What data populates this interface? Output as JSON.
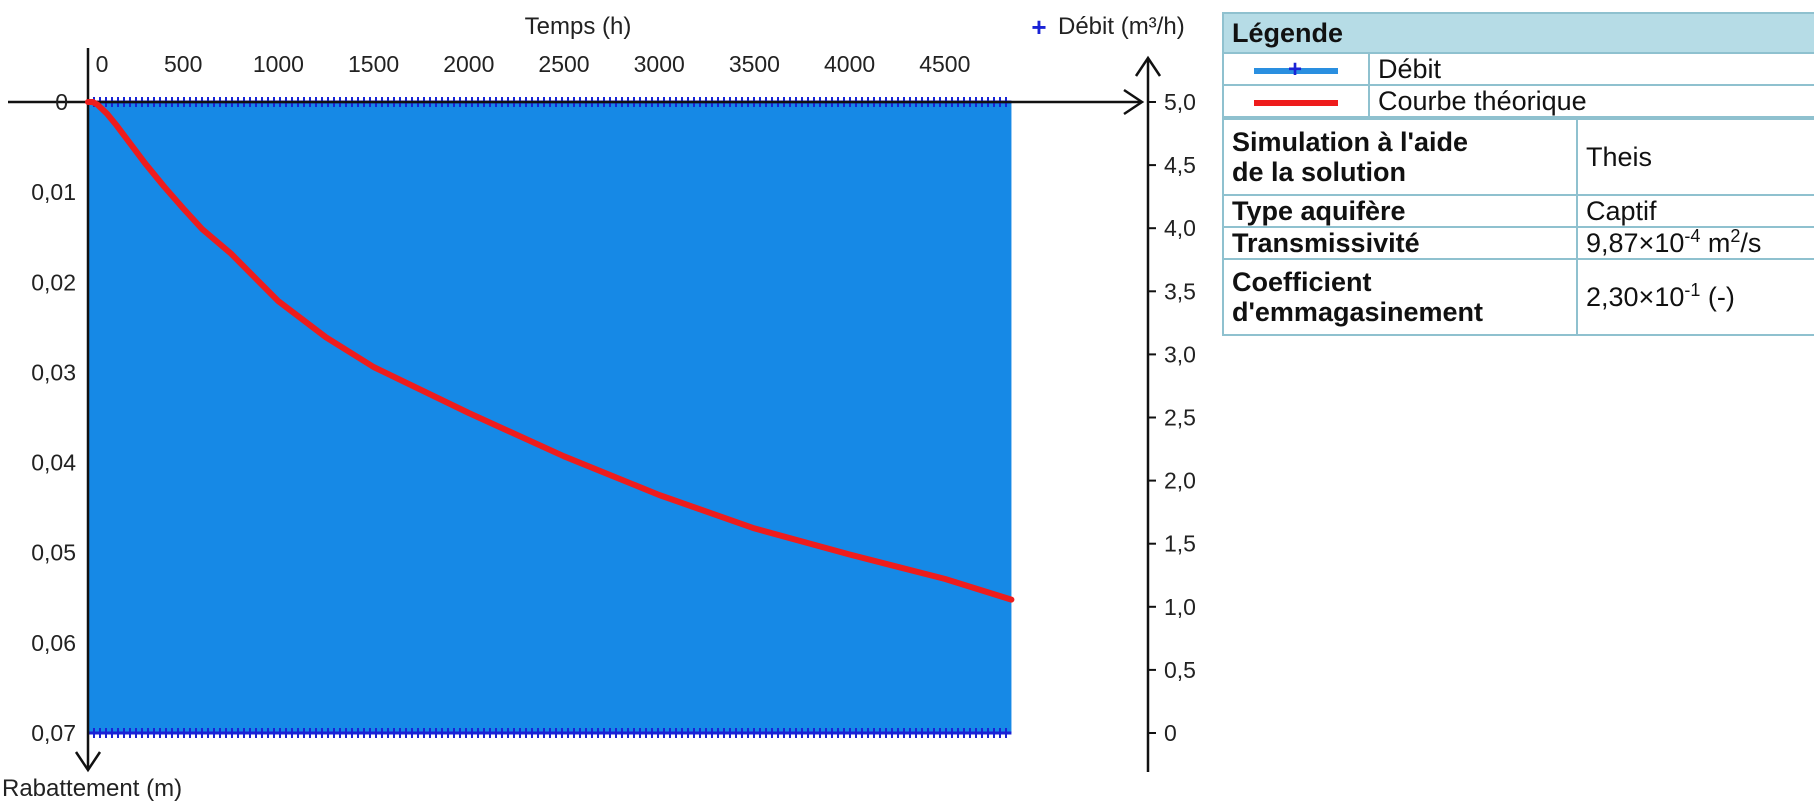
{
  "chart_data": {
    "type": "line",
    "x_axis": {
      "label": "Temps (h)",
      "ticks": [
        0,
        500,
        1000,
        1500,
        2000,
        2500,
        3000,
        3500,
        4000,
        4500
      ],
      "tick_labels": [
        "0",
        "500",
        "1000",
        "1500",
        "2000",
        "2500",
        "3000",
        "3500",
        "4000",
        "4500"
      ],
      "range": [
        0,
        4850
      ]
    },
    "y_axis_left": {
      "label": "Rabattement (m)",
      "inverted": true,
      "ticks": [
        0,
        0.01,
        0.02,
        0.03,
        0.04,
        0.05,
        0.06,
        0.07
      ],
      "tick_labels": [
        "0",
        "0,01",
        "0,02",
        "0,03",
        "0,04",
        "0,05",
        "0,06",
        "0,07"
      ],
      "range": [
        0,
        0.07
      ]
    },
    "y_axis_right": {
      "label": "Débit (m³/h)",
      "ticks": [
        0,
        0.5,
        1,
        1.5,
        2,
        2.5,
        3,
        3.5,
        4,
        4.5,
        5
      ],
      "tick_labels": [
        "0",
        "0,5",
        "1,0",
        "1,5",
        "2,0",
        "2,5",
        "3,0",
        "3,5",
        "4,0",
        "4,5",
        "5,0"
      ],
      "range": [
        0,
        5
      ]
    },
    "series": [
      {
        "name": "Débit",
        "axis": "right",
        "color": "#1a23d6",
        "fill_color": "#1689e6",
        "marker": "+",
        "note_values": "pumping alternates between 5,0 and 0 m³/h at very high frequency, filling the plot area",
        "x_range": [
          0,
          4850
        ],
        "y_levels": [
          0,
          5
        ]
      },
      {
        "name": "Courbe théorique",
        "axis": "left",
        "color": "#ee1c1c",
        "x": [
          0,
          25,
          50,
          75,
          100,
          150,
          200,
          300,
          400,
          500,
          600,
          750,
          1000,
          1250,
          1500,
          2000,
          2500,
          3000,
          3500,
          4000,
          4500,
          4850
        ],
        "y": [
          0,
          0.0,
          0.0003,
          0.0008,
          0.0013,
          0.0026,
          0.004,
          0.0068,
          0.0094,
          0.0118,
          0.0141,
          0.0168,
          0.0221,
          0.0261,
          0.0294,
          0.0345,
          0.0393,
          0.0436,
          0.0473,
          0.0502,
          0.0529,
          0.0552
        ]
      }
    ]
  },
  "legend_table": {
    "title": "Légende",
    "items": [
      {
        "label": "Débit",
        "color": "#2a8fe0",
        "marker_color": "#1a23d6"
      },
      {
        "label": "Courbe théorique",
        "color": "#ee1c1c"
      }
    ]
  },
  "params_table": {
    "rows": [
      {
        "label_line1": "Simulation à l'aide",
        "label_line2": "de la solution",
        "value": "Theis"
      },
      {
        "label_line1": "Type aquifère",
        "value": "Captif"
      },
      {
        "label_line1": "Transmissivité",
        "value_mantissa": "9,87×10",
        "value_exp": "-4",
        "value_unit": " m",
        "value_unit_exp": "2",
        "value_unit_tail": "/s"
      },
      {
        "label_line1": "Coefficient",
        "label_line2": "d'emmagasinement",
        "value_mantissa": "2,30×10",
        "value_exp": "-1",
        "value_unit": " (-)"
      }
    ]
  }
}
